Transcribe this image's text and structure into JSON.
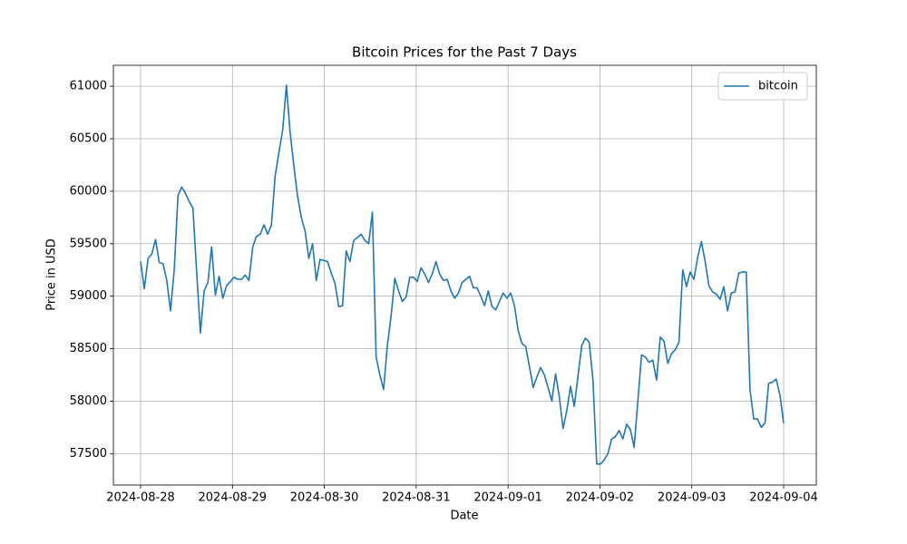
{
  "chart_data": {
    "type": "line",
    "title": "Bitcoin Prices for the Past 7 Days",
    "xlabel": "Date",
    "ylabel": "Price in USD",
    "xticks": [
      "2024-08-28",
      "2024-08-29",
      "2024-08-30",
      "2024-08-31",
      "2024-09-01",
      "2024-09-02",
      "2024-09-03",
      "2024-09-04"
    ],
    "ylim": [
      57200,
      61200
    ],
    "yticks": [
      57500,
      58000,
      58500,
      59000,
      59500,
      60000,
      60500,
      61000
    ],
    "grid": true,
    "legend": "upper right",
    "series": [
      {
        "name": "bitcoin",
        "color": "#1f77b4",
        "values": [
          59330,
          59070,
          59360,
          59400,
          59540,
          59320,
          59310,
          59150,
          58860,
          59250,
          59960,
          60040,
          59980,
          59900,
          59840,
          59230,
          58650,
          59050,
          59130,
          59470,
          59010,
          59190,
          58980,
          59100,
          59140,
          59180,
          59160,
          59160,
          59200,
          59150,
          59470,
          59570,
          59590,
          59680,
          59590,
          59680,
          60150,
          60370,
          60580,
          61010,
          60560,
          60240,
          59950,
          59750,
          59620,
          59360,
          59500,
          59150,
          59350,
          59340,
          59330,
          59220,
          59120,
          58900,
          58910,
          59430,
          59330,
          59530,
          59560,
          59590,
          59530,
          59500,
          59800,
          58420,
          58250,
          58110,
          58530,
          58810,
          59170,
          59050,
          58950,
          58990,
          59180,
          59180,
          59140,
          59270,
          59210,
          59130,
          59210,
          59330,
          59210,
          59150,
          59160,
          59050,
          58980,
          59030,
          59130,
          59160,
          59190,
          59080,
          59080,
          59000,
          58910,
          59050,
          58900,
          58870,
          58950,
          59030,
          58980,
          59030,
          58910,
          58670,
          58550,
          58520,
          58330,
          58130,
          58230,
          58320,
          58250,
          58130,
          58000,
          58260,
          58040,
          57740,
          57910,
          58140,
          57950,
          58240,
          58530,
          58600,
          58560,
          58200,
          57400,
          57400,
          57440,
          57500,
          57640,
          57660,
          57720,
          57640,
          57780,
          57730,
          57560,
          58000,
          58440,
          58420,
          58370,
          58390,
          58200,
          58610,
          58570,
          58360,
          58450,
          58490,
          58560,
          59250,
          59090,
          59230,
          59160,
          59370,
          59520,
          59330,
          59100,
          59040,
          59020,
          58970,
          59090,
          58860,
          59030,
          59040,
          59220,
          59230,
          59230,
          58110,
          57830,
          57830,
          57750,
          57790,
          58170,
          58180,
          58210,
          58060,
          57790
        ]
      }
    ]
  }
}
